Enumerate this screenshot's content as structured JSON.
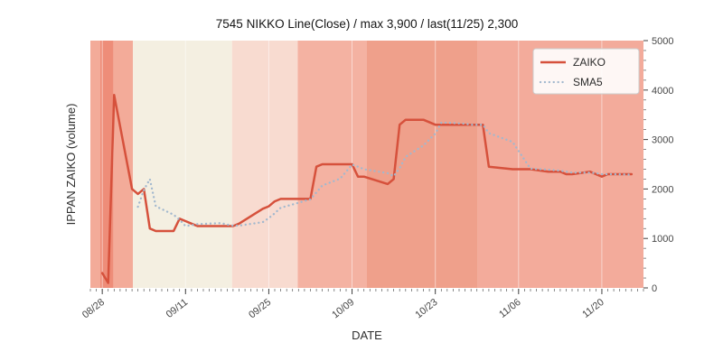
{
  "chart_data": {
    "type": "line",
    "title": "7545 NIKKO Line(Close) / max 3,900 / last(11/25) 2,300",
    "xlabel": "DATE",
    "ylabel": "IPPAN ZAIKO (volume)",
    "ylim": [
      0,
      5000
    ],
    "y_ticks": [
      0,
      1000,
      2000,
      3000,
      4000,
      5000
    ],
    "x_tick_labels": [
      "08/28",
      "09/11",
      "09/25",
      "10/09",
      "10/23",
      "11/06",
      "11/20"
    ],
    "x_range_dates": [
      "08/26",
      "11/27"
    ],
    "grid": false,
    "legend_position": "upper right",
    "annotations": {
      "max": 3900,
      "last_date": "11/25",
      "last_value": 2300
    },
    "x": [
      "08/28",
      "08/29",
      "08/30",
      "09/02",
      "09/03",
      "09/04",
      "09/05",
      "09/06",
      "09/09",
      "09/10",
      "09/11",
      "09/12",
      "09/13",
      "09/17",
      "09/18",
      "09/19",
      "09/20",
      "09/24",
      "09/25",
      "09/26",
      "09/27",
      "09/30",
      "10/01",
      "10/02",
      "10/03",
      "10/04",
      "10/07",
      "10/08",
      "10/09",
      "10/10",
      "10/11",
      "10/15",
      "10/16",
      "10/17",
      "10/18",
      "10/21",
      "10/23",
      "10/24",
      "10/25",
      "10/28",
      "10/29",
      "10/30",
      "10/31",
      "11/01",
      "11/05",
      "11/06",
      "11/07",
      "11/08",
      "11/11",
      "11/12",
      "11/13",
      "11/14",
      "11/15",
      "11/18",
      "11/19",
      "11/20",
      "11/21",
      "11/22",
      "11/25"
    ],
    "series": [
      {
        "name": "ZAIKO",
        "color": "#d6513c",
        "line_style": "solid",
        "values": [
          300,
          100,
          3900,
          2000,
          1900,
          2000,
          1200,
          1150,
          1150,
          1400,
          1350,
          1300,
          1250,
          1250,
          1250,
          1250,
          1300,
          1600,
          1650,
          1750,
          1800,
          1800,
          1800,
          1800,
          2450,
          2500,
          2500,
          2500,
          2500,
          2250,
          2250,
          2100,
          2200,
          3300,
          3400,
          3400,
          3300,
          3300,
          3300,
          3300,
          3300,
          3300,
          3300,
          2450,
          2400,
          2400,
          2400,
          2400,
          2350,
          2350,
          2350,
          2300,
          2300,
          2350,
          2300,
          2250,
          2300,
          2300,
          2300
        ]
      },
      {
        "name": "SMA5",
        "color": "#a2b8ce",
        "line_style": "dotted",
        "values": [
          null,
          null,
          null,
          null,
          1640,
          1980,
          2200,
          1650,
          1480,
          1380,
          1250,
          1270,
          1290,
          1310,
          1280,
          1260,
          1260,
          1330,
          1410,
          1510,
          1620,
          1720,
          1760,
          1790,
          1930,
          2070,
          2210,
          2350,
          2490,
          2450,
          2400,
          2320,
          2260,
          2420,
          2650,
          2880,
          3120,
          3340,
          3340,
          3320,
          3300,
          3300,
          3300,
          3130,
          2950,
          2770,
          2590,
          2410,
          2390,
          2380,
          2370,
          2350,
          2330,
          2330,
          2320,
          2300,
          2300,
          2300,
          2290
        ]
      }
    ],
    "background_bands": [
      {
        "from_frac": 0.0,
        "to_frac": 0.018,
        "color": "#f3ab99"
      },
      {
        "from_frac": 0.018,
        "to_frac": 0.042,
        "color": "#ee8d79"
      },
      {
        "from_frac": 0.042,
        "to_frac": 0.077,
        "color": "#f3ab99"
      },
      {
        "from_frac": 0.077,
        "to_frac": 0.256,
        "color": "#f4efe1"
      },
      {
        "from_frac": 0.256,
        "to_frac": 0.375,
        "color": "#f8dbd0"
      },
      {
        "from_frac": 0.375,
        "to_frac": 0.5,
        "color": "#f4b2a2"
      },
      {
        "from_frac": 0.5,
        "to_frac": 0.7,
        "color": "#efa08b"
      },
      {
        "from_frac": 0.7,
        "to_frac": 1.0,
        "color": "#f3ab9b"
      }
    ]
  }
}
